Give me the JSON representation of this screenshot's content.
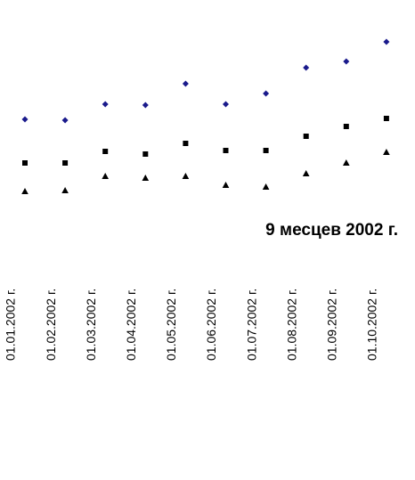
{
  "chart_data": {
    "type": "line",
    "lines": false,
    "title": "9 месцев 2002 г.",
    "categories": [
      "01.01.2002 г.",
      "01.02.2002 г.",
      "01.03.2002 г.",
      "01.04.2002 г.",
      "01.05.2002 г.",
      "01.06.2002 г.",
      "01.07.2002 г.",
      "01.08.2002 г.",
      "01.09.2002 г.",
      "01.10.2002 г."
    ],
    "ylim": [
      0,
      250
    ],
    "series": [
      {
        "color": "#1a1a8c",
        "marker": "diamond",
        "values": [
          116,
          115,
          133,
          132,
          156,
          133,
          145,
          174,
          181,
          203
        ]
      },
      {
        "color": "#000000",
        "marker": "square",
        "values": [
          67,
          67,
          80,
          77,
          89,
          81,
          81,
          97,
          108,
          117
        ]
      },
      {
        "color": "#000000",
        "marker": "triangle",
        "values": [
          35,
          36,
          52,
          50,
          52,
          42,
          40,
          55,
          67,
          79
        ]
      }
    ]
  }
}
